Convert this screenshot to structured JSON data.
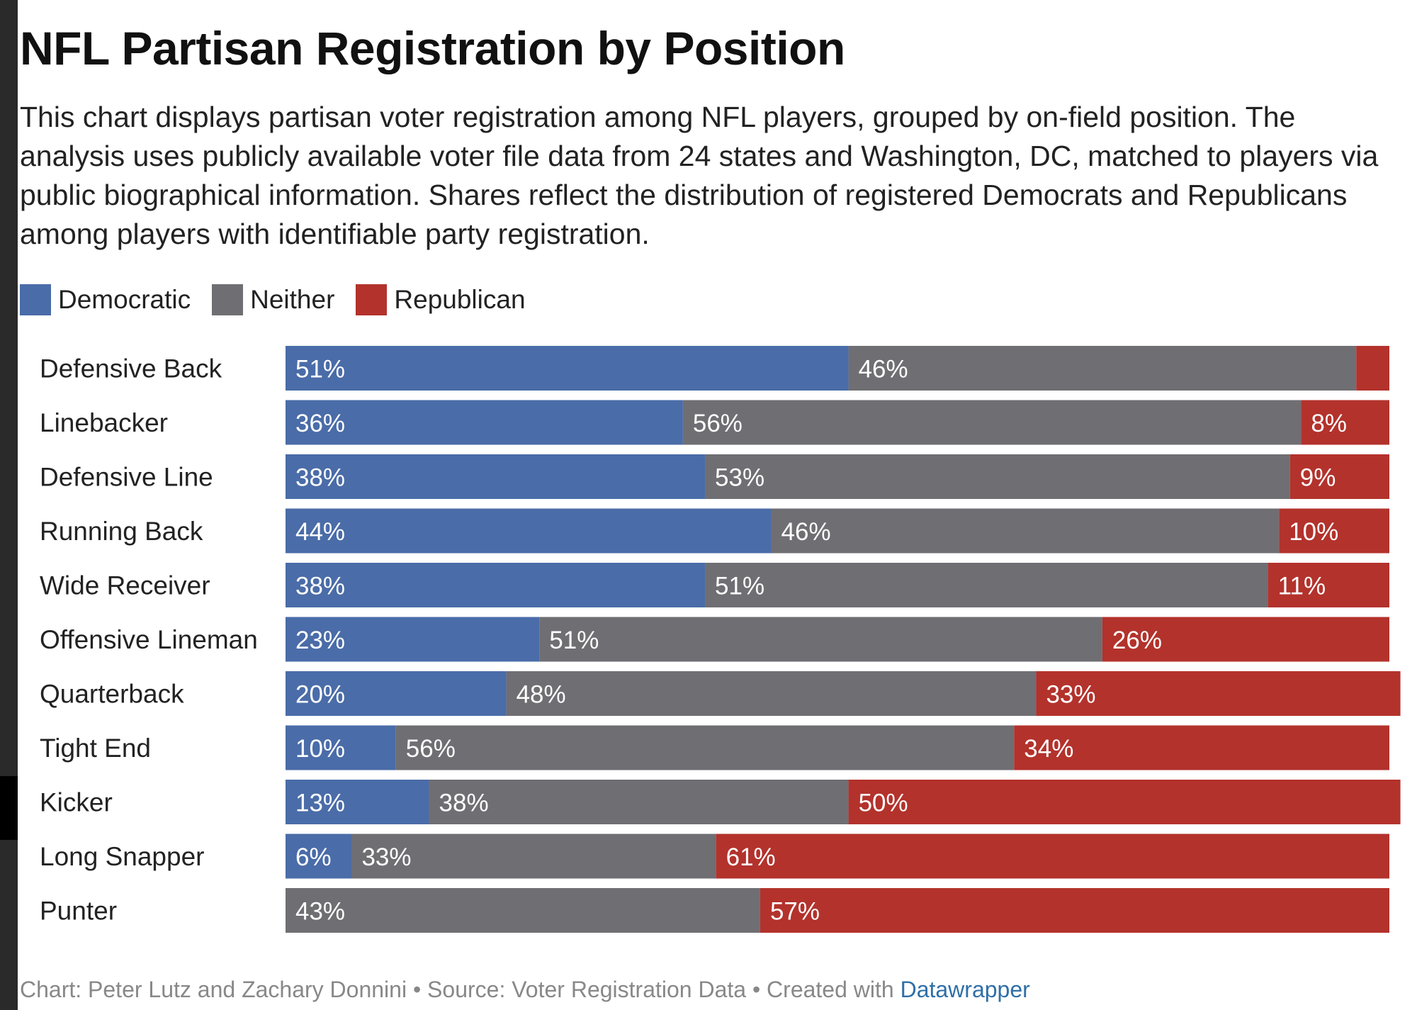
{
  "chart_data": {
    "type": "bar",
    "orientation": "horizontal",
    "stacked": true,
    "normalized_percent": true,
    "title": "NFL Partisan Registration by Position",
    "subtitle": "This chart displays partisan voter registration among NFL players, grouped by on-field position. The analysis uses publicly available voter file data from 24 states and Washington, DC, matched to players via public biographical information. Shares reflect the distribution of registered Democrats and Republicans among players with identifiable party registration.",
    "categories": [
      "Defensive Back",
      "Linebacker",
      "Defensive Line",
      "Running Back",
      "Wide Receiver",
      "Offensive Lineman",
      "Quarterback",
      "Tight End",
      "Kicker",
      "Long Snapper",
      "Punter"
    ],
    "series": [
      {
        "name": "Democratic",
        "color": "#4a6ca8",
        "values": [
          51,
          36,
          38,
          44,
          38,
          23,
          20,
          10,
          13,
          6,
          0
        ]
      },
      {
        "name": "Neither",
        "color": "#6f6e73",
        "values": [
          46,
          56,
          53,
          46,
          51,
          51,
          48,
          56,
          38,
          33,
          43
        ]
      },
      {
        "name": "Republican",
        "color": "#b3322c",
        "values": [
          3,
          8,
          9,
          10,
          11,
          26,
          33,
          34,
          50,
          61,
          57
        ]
      }
    ],
    "labels": [
      [
        "51%",
        "46%",
        ""
      ],
      [
        "36%",
        "56%",
        "8%"
      ],
      [
        "38%",
        "53%",
        "9%"
      ],
      [
        "44%",
        "46%",
        "10%"
      ],
      [
        "38%",
        "51%",
        "11%"
      ],
      [
        "23%",
        "51%",
        "26%"
      ],
      [
        "20%",
        "48%",
        "33%"
      ],
      [
        "10%",
        "56%",
        "34%"
      ],
      [
        "13%",
        "38%",
        "50%"
      ],
      [
        "6%",
        "33%",
        "61%"
      ],
      [
        "",
        "43%",
        "57%"
      ]
    ],
    "xlim": [
      0,
      100
    ],
    "legend_position": "top-left",
    "grid": false
  },
  "footer": {
    "text": "Chart: Peter Lutz and Zachary Donnini • Source: Voter Registration Data • Created with ",
    "link": "Datawrapper"
  }
}
